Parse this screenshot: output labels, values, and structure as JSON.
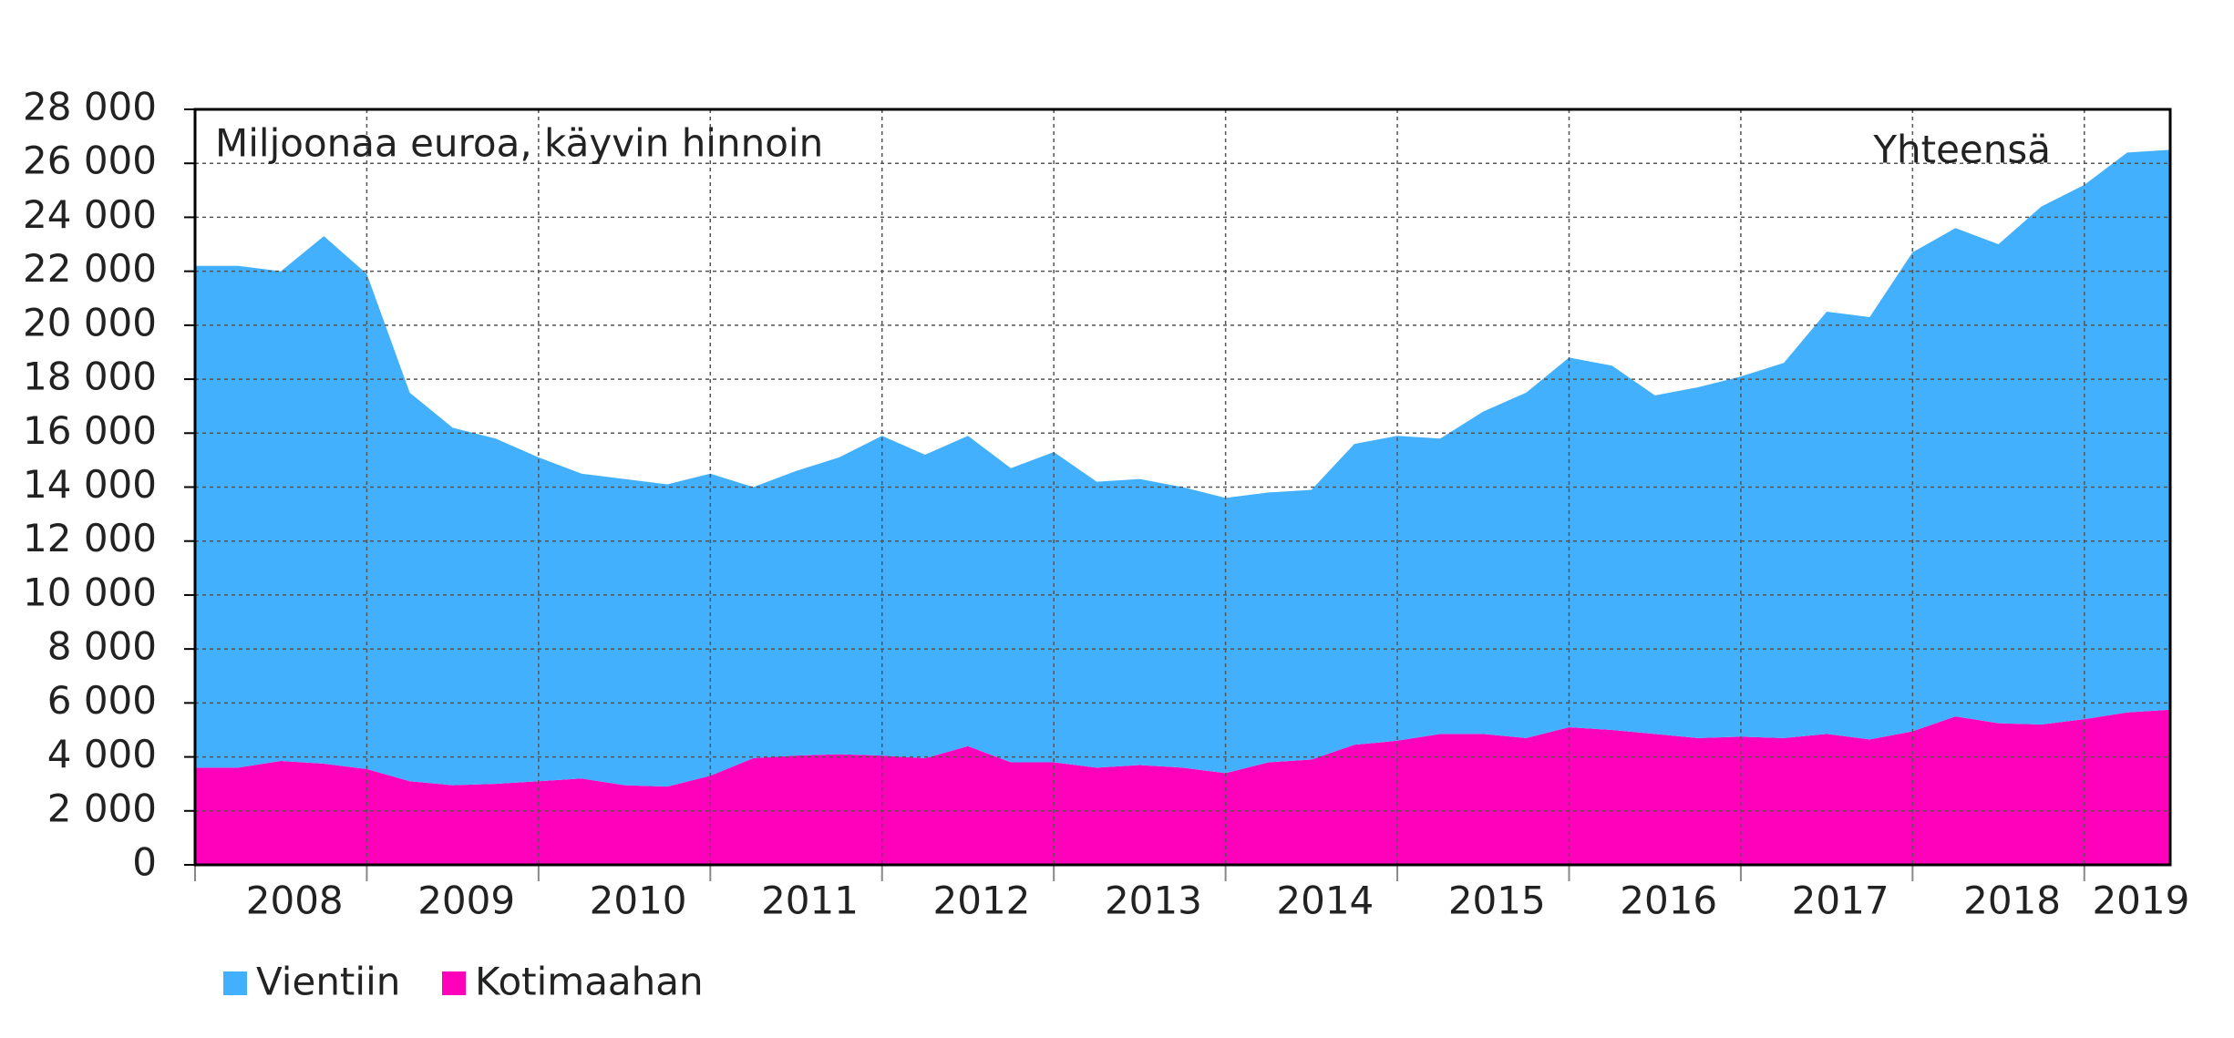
{
  "chart_data": {
    "type": "stacked_area",
    "annotations": [
      "Miljoonaa euroa, käyvin hinnoin",
      "Yhteensä"
    ],
    "year_labels": [
      "2008",
      "2009",
      "2010",
      "2011",
      "2012",
      "2013",
      "2014",
      "2015",
      "2016",
      "2017",
      "2018",
      "2019"
    ],
    "series": [
      {
        "name": "Vientiin",
        "color": "#42b0fc",
        "values": [
          18600,
          18600,
          18150,
          19550,
          18350,
          14400,
          13250,
          12800,
          12000,
          11300,
          11350,
          11200,
          11200,
          10050,
          10550,
          11000,
          11850,
          11250,
          11500,
          10900,
          11500,
          10600,
          10600,
          10400,
          10200,
          10000,
          10000,
          11150,
          11300,
          10950,
          11950,
          12800,
          13700,
          13500,
          12550,
          13000,
          13350,
          13900,
          15650,
          15650,
          17750,
          18100,
          17750,
          19200,
          19800,
          20750,
          20750
        ]
      },
      {
        "name": "Kotimaahan",
        "color": "#ff00bb",
        "values": [
          3600,
          3600,
          3850,
          3750,
          3550,
          3100,
          2950,
          3000,
          3100,
          3200,
          2950,
          2900,
          3300,
          3950,
          4050,
          4100,
          4050,
          3950,
          4400,
          3800,
          3800,
          3600,
          3700,
          3600,
          3400,
          3800,
          3900,
          4450,
          4600,
          4850,
          4850,
          4700,
          5100,
          5000,
          4850,
          4700,
          4750,
          4700,
          4850,
          4650,
          4950,
          5500,
          5250,
          5200,
          5400,
          5650,
          5750
        ]
      }
    ],
    "ylim": [
      0,
      28000
    ],
    "yticks": [
      0,
      {
        "value": 2000,
        "label": "2 000"
      },
      {
        "value": 4000,
        "label": "4 000"
      },
      {
        "value": 6000,
        "label": "6 000"
      },
      {
        "value": 8000,
        "label": "8 000"
      },
      {
        "value": 10000,
        "label": "10 000"
      },
      {
        "value": 12000,
        "label": "12 000"
      },
      {
        "value": 14000,
        "label": "14 000"
      },
      {
        "value": 16000,
        "label": "16 000"
      },
      {
        "value": 18000,
        "label": "18 000"
      },
      {
        "value": 20000,
        "label": "20 000"
      },
      {
        "value": 22000,
        "label": "22 000"
      },
      {
        "value": 24000,
        "label": "24 000"
      },
      {
        "value": 26000,
        "label": "26 000"
      },
      {
        "value": 28000,
        "label": "28 000"
      }
    ],
    "grid": true
  }
}
